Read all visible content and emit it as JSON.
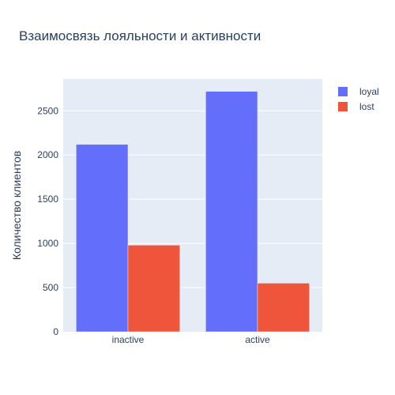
{
  "chart_data": {
    "type": "bar",
    "title": "Взаимосвязь лояльности и активности",
    "xlabel": "",
    "ylabel": "Количество клиентов",
    "categories": [
      "inactive",
      "active"
    ],
    "series": [
      {
        "name": "loyal",
        "values": [
          2120,
          2720
        ],
        "color": "#636efa"
      },
      {
        "name": "lost",
        "values": [
          980,
          550
        ],
        "color": "#ef553b"
      }
    ],
    "ylim": [
      0,
      2860
    ],
    "yticks": [
      0,
      500,
      1000,
      1500,
      2000,
      2500
    ],
    "grid": true,
    "legend_position": "top-right",
    "plot_background": "#e5ecf6"
  }
}
